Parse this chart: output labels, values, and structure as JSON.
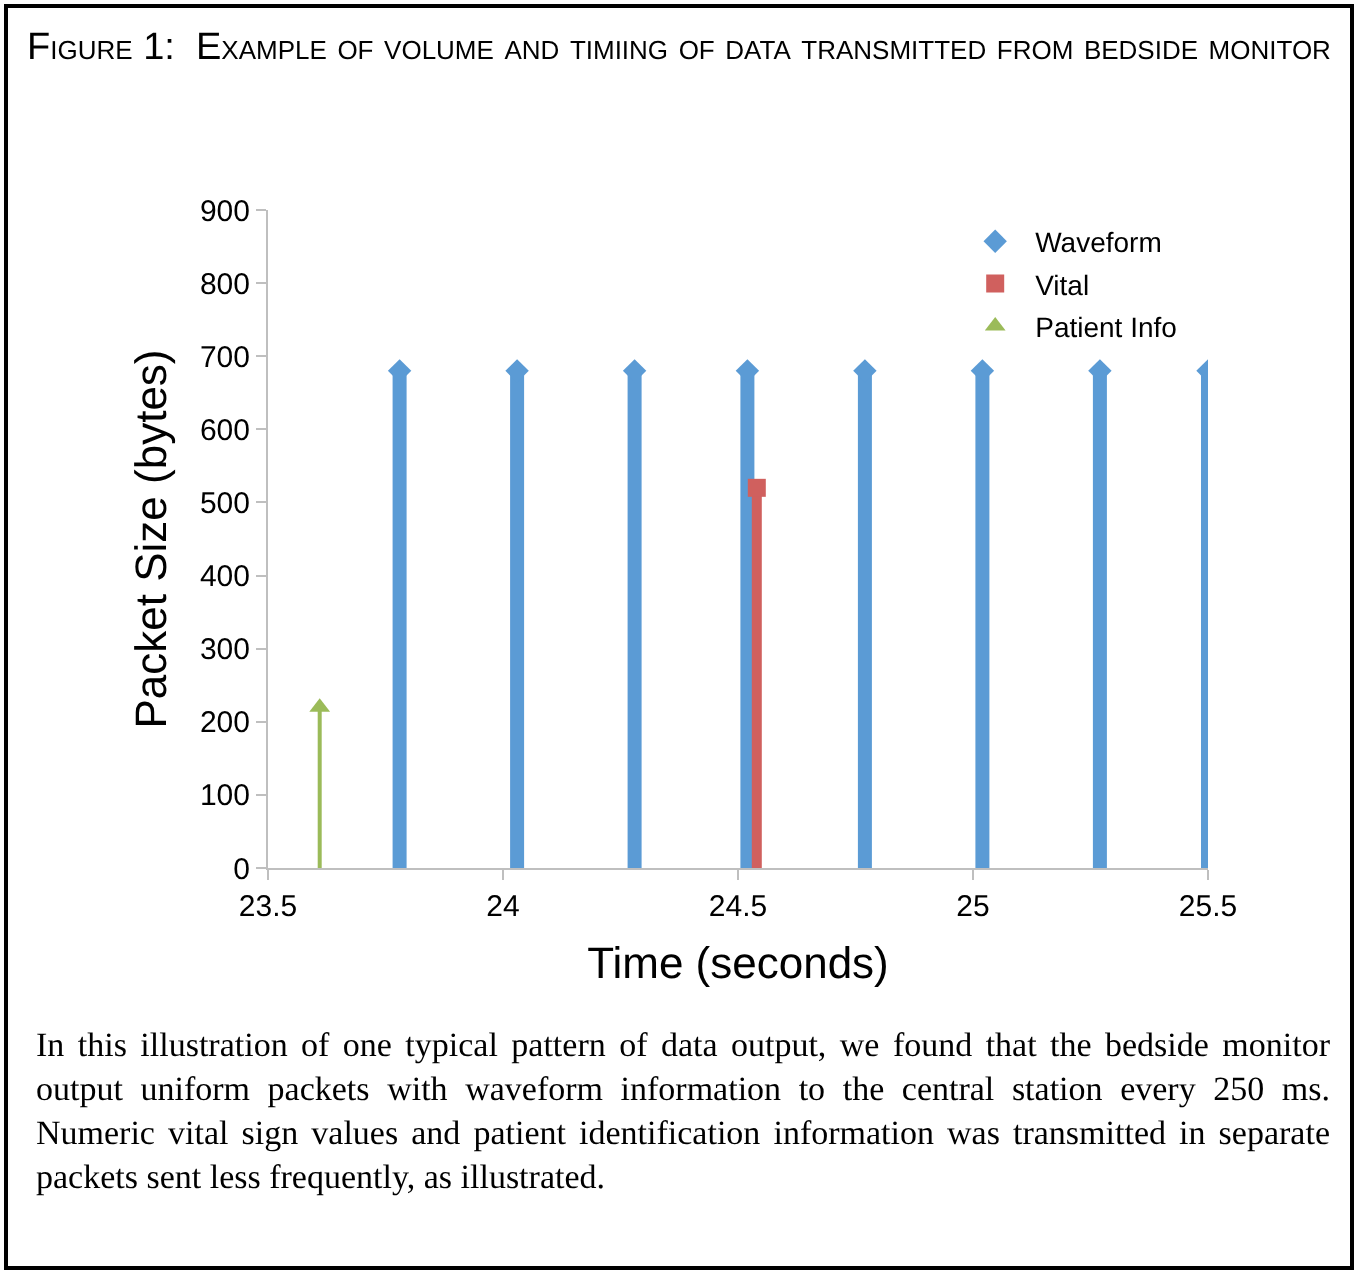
{
  "chart_data": {
    "type": "lollipop",
    "title": "Figure 1:  Example of volume and timiing of data transmitted from bedside monitor",
    "xlabel": "Time (seconds)",
    "ylabel": "Packet Size (bytes)",
    "xlim": [
      23.5,
      25.5
    ],
    "xticks": [
      23.5,
      24,
      24.5,
      25,
      25.5
    ],
    "ylim": [
      0,
      900
    ],
    "yticks": [
      0,
      100,
      200,
      300,
      400,
      500,
      600,
      700,
      800,
      900
    ],
    "grid": false,
    "legend": "top right",
    "series": [
      {
        "name": "Waveform",
        "color": "#5b9bd5",
        "marker": "diamond",
        "x": [
          23.78,
          24.03,
          24.28,
          24.52,
          24.77,
          25.02,
          25.27,
          25.5
        ],
        "values": [
          680,
          680,
          680,
          680,
          680,
          680,
          680,
          680
        ]
      },
      {
        "name": "Vital",
        "color": "#d0605e",
        "marker": "square",
        "x": [
          24.54
        ],
        "values": [
          520
        ]
      },
      {
        "name": "Patient Info",
        "color": "#9bbb59",
        "marker": "triangle",
        "x": [
          23.61
        ],
        "values": [
          220
        ]
      }
    ],
    "annotations": [
      "In this illustration of one typical pattern of data output, we found that the bedside monitor output uniform packets with waveform information to the central station every 250 ms.  Numeric vital sign values and patient identification information was transmitted in separate packets sent less frequently, as illustrated."
    ]
  }
}
